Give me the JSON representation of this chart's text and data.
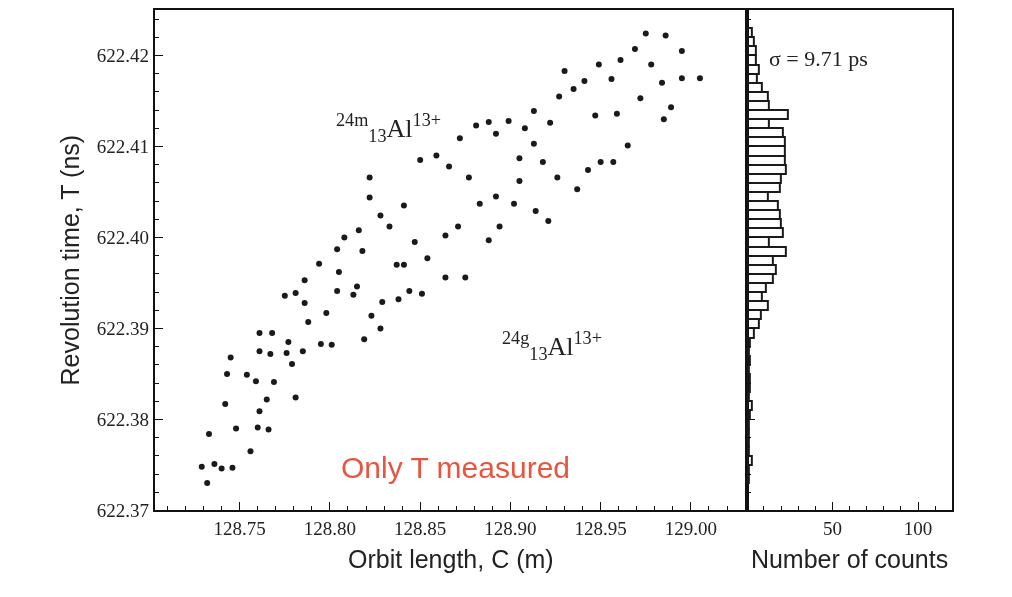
{
  "chart_data": [
    {
      "type": "scatter",
      "xlabel": "Orbit length, C (m)",
      "ylabel": "Revolution time, T (ns)",
      "marker": "circle",
      "annotations": [
        "$^{24m}$$_{13}$Al$^{13+}$",
        "$^{24g}$$_{13}$Al$^{13+}$",
        "Only T measured"
      ],
      "xlim": [
        128.703,
        129.031
      ],
      "ylim": [
        622.37,
        622.425
      ],
      "xticks": [
        128.75,
        {
          "value": 128.8,
          "label": "128.80"
        },
        128.85,
        {
          "value": 128.9,
          "label": "128.90"
        },
        128.95,
        {
          "value": 129.0,
          "label": "129.00"
        }
      ],
      "yticks": [
        622.37,
        622.38,
        622.39,
        {
          "value": 622.4,
          "label": "622.40"
        },
        622.41,
        622.42
      ],
      "x": [
        128.732,
        128.729,
        128.736,
        128.74,
        128.746,
        128.733,
        128.748,
        128.756,
        128.76,
        128.766,
        128.761,
        128.742,
        128.743,
        128.745,
        128.754,
        128.759,
        128.765,
        128.769,
        128.781,
        128.761,
        128.767,
        128.761,
        128.768,
        128.776,
        128.779,
        128.777,
        128.785,
        128.775,
        128.781,
        128.786,
        128.786,
        128.788,
        128.794,
        128.795,
        128.801,
        128.798,
        128.804,
        128.804,
        128.808,
        128.805,
        128.813,
        128.816,
        128.818,
        128.819,
        128.823,
        128.828,
        128.822,
        128.822,
        128.828,
        128.829,
        128.833,
        128.838,
        128.841,
        128.841,
        128.844,
        128.847,
        128.851,
        128.85,
        128.854,
        128.859,
        128.864,
        128.864,
        128.866,
        128.872,
        128.875,
        128.877,
        128.881,
        128.883,
        128.888,
        128.888,
        128.892,
        128.894,
        128.899,
        128.902,
        128.905,
        128.908,
        128.913,
        128.913,
        128.914,
        128.921,
        128.922,
        128.926,
        128.927,
        128.93,
        128.935,
        128.937,
        128.941,
        128.943,
        128.947,
        128.949,
        128.956,
        128.957,
        128.959,
        128.961,
        128.965,
        128.969,
        128.972,
        128.975,
        128.978,
        128.984,
        128.985,
        128.986,
        128.989,
        128.995,
        128.995,
        129.005,
        128.95,
        128.918,
        128.905,
        128.892,
        128.871,
        128.837,
        128.815
      ],
      "series": [
        {
          "color": "#1a1a1a",
          "values": [
            622.373,
            622.3748,
            622.3751,
            622.3746,
            622.3747,
            622.3784,
            622.379,
            622.3765,
            622.3791,
            622.3789,
            622.3809,
            622.3817,
            622.385,
            622.3868,
            622.3849,
            622.3842,
            622.3822,
            622.3841,
            622.3824,
            622.3875,
            622.3872,
            622.3895,
            622.3895,
            622.3873,
            622.3861,
            622.3885,
            622.3875,
            622.3936,
            622.3939,
            622.3953,
            622.3928,
            622.3907,
            622.3971,
            622.3883,
            622.3882,
            622.3917,
            622.3941,
            622.3987,
            622.4,
            622.3962,
            622.3937,
            622.4008,
            622.3985,
            622.3888,
            622.3914,
            622.39,
            622.4066,
            622.4044,
            622.4024,
            622.3929,
            622.4012,
            622.3932,
            622.4035,
            622.397,
            622.3941,
            622.3995,
            622.3938,
            622.4085,
            622.3977,
            622.409,
            622.3956,
            622.4002,
            622.4078,
            622.4109,
            622.3956,
            622.4066,
            622.4123,
            622.4037,
            622.3997,
            622.4127,
            622.4114,
            622.4012,
            622.4128,
            622.4037,
            622.4087,
            622.412,
            622.4139,
            622.4103,
            622.4029,
            622.4018,
            622.4126,
            622.4066,
            622.4155,
            622.4183,
            622.4163,
            622.4053,
            622.4172,
            622.4074,
            622.4134,
            622.419,
            622.4174,
            622.4083,
            622.4136,
            622.4195,
            622.4101,
            622.4207,
            622.4153,
            622.4224,
            622.419,
            622.417,
            622.413,
            622.4222,
            622.4143,
            622.4205,
            622.4175,
            622.4175,
            622.4083,
            622.4083,
            622.4062,
            622.4045,
            622.4012,
            622.397,
            622.3946
          ]
        }
      ]
    },
    {
      "type": "histogram",
      "orientation": "horizontal",
      "xlabel": "Number of counts",
      "annotations": [
        "σ = 9.71 ps"
      ],
      "tick_labels": "x",
      "xlim": [
        0,
        120
      ],
      "xticks": [
        {
          "value": 0,
          "label": null
        },
        50,
        100
      ],
      "ylim": [
        622.37,
        622.425
      ],
      "yticks": [
        {
          "value": 622.37,
          "label": null
        },
        {
          "value": 622.38,
          "label": null
        },
        {
          "value": 622.39,
          "label": null
        },
        {
          "value": 622.4,
          "label": null
        },
        {
          "value": 622.41,
          "label": null
        },
        {
          "value": 622.42,
          "label": null
        }
      ],
      "bins": [
        622.373,
        622.374,
        622.375,
        622.376,
        622.377,
        622.378,
        622.379,
        622.38,
        622.381,
        622.382,
        622.383,
        622.384,
        622.385,
        622.386,
        622.387,
        622.388,
        622.389,
        622.39,
        622.391,
        622.392,
        622.393,
        622.394,
        622.395,
        622.396,
        622.397,
        622.398,
        622.399,
        622.4,
        622.401,
        622.402,
        622.403,
        622.404,
        622.405,
        622.406,
        622.407,
        622.408,
        622.409,
        622.41,
        622.411,
        622.412,
        622.413,
        622.414,
        622.415,
        622.416,
        622.417,
        622.418,
        622.419,
        622.42,
        622.421,
        622.422,
        622.423
      ],
      "color": "#1a1a1a",
      "values": [
        1,
        1,
        3,
        1,
        1,
        1,
        1,
        2,
        3,
        1,
        2,
        2,
        1,
        2,
        1,
        2,
        4,
        7,
        8,
        12,
        9,
        11,
        15,
        17,
        15,
        23,
        13,
        21,
        20,
        19,
        18,
        12,
        19,
        20,
        23,
        22,
        22,
        22,
        21,
        13,
        24,
        13,
        12,
        9,
        6,
        7,
        5,
        5,
        4,
        3
      ]
    }
  ]
}
